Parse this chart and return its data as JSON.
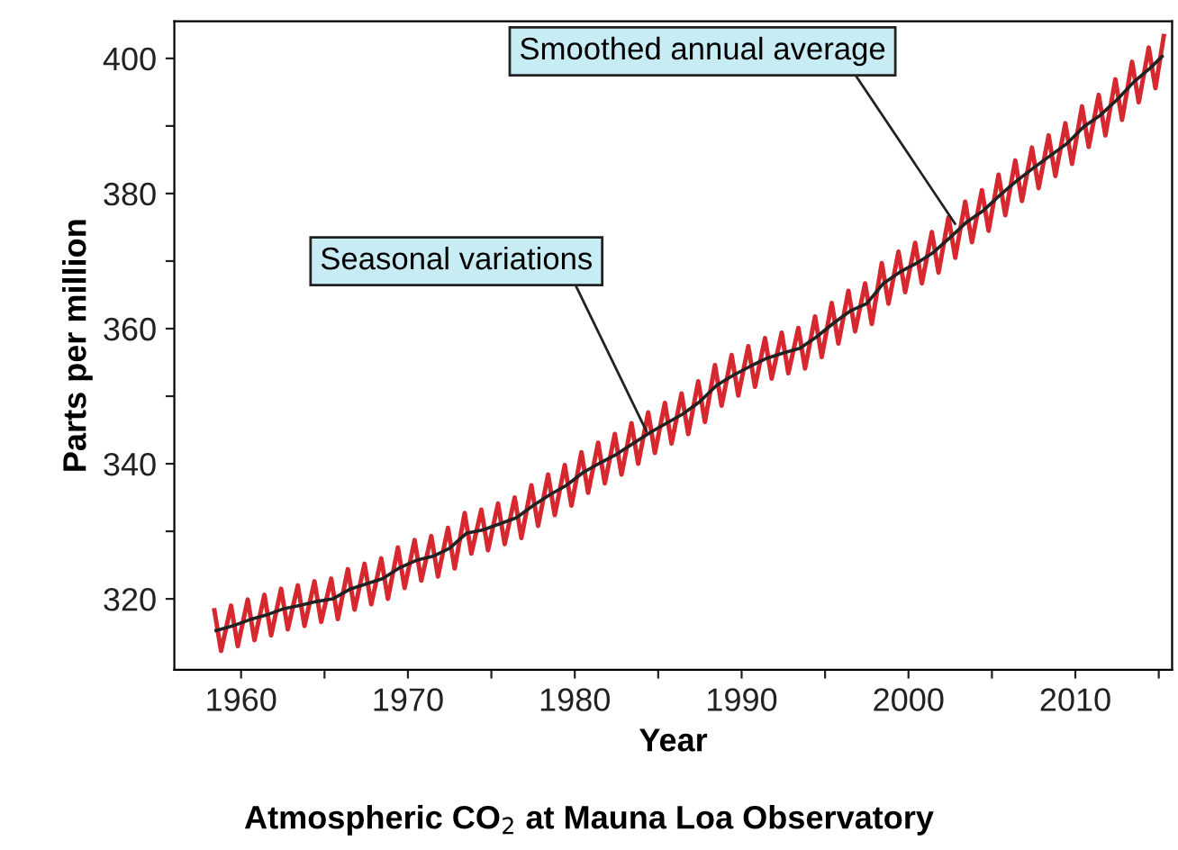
{
  "chart_data": {
    "type": "line",
    "title": "Atmospheric CO$_{2}$ at Mauna Loa Observatory",
    "xlabel": "Year",
    "ylabel": "Parts per million",
    "xlim": [
      1956,
      2015.8
    ],
    "ylim": [
      309.5,
      405.5
    ],
    "xticks": [
      1960,
      {
        "value": 1965,
        "label": null
      },
      1970,
      {
        "value": 1975,
        "label": null
      },
      1980,
      {
        "value": 1985,
        "label": null
      },
      1990,
      {
        "value": 1995,
        "label": null
      },
      2000,
      {
        "value": 2005,
        "label": null
      },
      2010,
      {
        "value": 2015,
        "label": null
      }
    ],
    "yticks": [
      320,
      {
        "value": 330,
        "label": null
      },
      340,
      {
        "value": 350,
        "label": null
      },
      360,
      {
        "value": 370,
        "label": null
      },
      380,
      {
        "value": 390,
        "label": null
      },
      400
    ],
    "grid": false,
    "legend": false,
    "line_style": "solid",
    "marker": "none",
    "annotations": [
      {
        "text": "Seasonal variations",
        "x": 1984.3,
        "y": 344.8
      },
      {
        "text": "Smoothed annual average",
        "x": 2002.8,
        "y": 375.5
      }
    ],
    "series": [
      {
        "color": "#d7282f",
        "x": [
          1958.4,
          1958.8,
          1959.4,
          1959.8,
          1960.4,
          1960.8,
          1961.4,
          1961.8,
          1962.4,
          1962.8,
          1963.4,
          1963.8,
          1964.4,
          1964.8,
          1965.4,
          1965.8,
          1966.4,
          1966.8,
          1967.4,
          1967.8,
          1968.4,
          1968.8,
          1969.4,
          1969.8,
          1970.4,
          1970.8,
          1971.4,
          1971.8,
          1972.4,
          1972.8,
          1973.4,
          1973.8,
          1974.4,
          1974.8,
          1975.4,
          1975.8,
          1976.4,
          1976.8,
          1977.4,
          1977.8,
          1978.4,
          1978.8,
          1979.4,
          1979.8,
          1980.4,
          1980.8,
          1981.4,
          1981.8,
          1982.4,
          1982.8,
          1983.4,
          1983.8,
          1984.4,
          1984.8,
          1985.4,
          1985.8,
          1986.4,
          1986.8,
          1987.4,
          1987.8,
          1988.4,
          1988.8,
          1989.4,
          1989.8,
          1990.4,
          1990.8,
          1991.4,
          1991.8,
          1992.4,
          1992.8,
          1993.4,
          1993.8,
          1994.4,
          1994.8,
          1995.4,
          1995.8,
          1996.4,
          1996.8,
          1997.4,
          1997.8,
          1998.4,
          1998.8,
          1999.4,
          1999.8,
          2000.4,
          2000.8,
          2001.4,
          2001.8,
          2002.4,
          2002.8,
          2003.4,
          2003.8,
          2004.4,
          2004.8,
          2005.4,
          2005.8,
          2006.4,
          2006.8,
          2007.4,
          2007.8,
          2008.4,
          2008.8,
          2009.4,
          2009.8,
          2010.4,
          2010.8,
          2011.4,
          2011.8,
          2012.4,
          2012.8,
          2013.4,
          2013.8,
          2014.4,
          2014.8,
          2015.3
        ],
        "values": [
          318.3,
          312.3,
          319.0,
          313.0,
          319.9,
          313.9,
          320.6,
          314.6,
          321.5,
          315.5,
          322.0,
          316.0,
          322.6,
          316.6,
          323.0,
          317.0,
          324.4,
          318.4,
          325.2,
          319.2,
          326.0,
          320.0,
          327.6,
          321.6,
          328.7,
          322.7,
          329.3,
          323.3,
          330.5,
          324.5,
          332.7,
          326.7,
          333.2,
          327.2,
          334.1,
          328.1,
          335.0,
          329.0,
          336.8,
          330.8,
          338.4,
          332.4,
          339.8,
          333.8,
          341.7,
          335.7,
          343.1,
          337.1,
          344.4,
          338.4,
          346.0,
          340.0,
          347.6,
          341.6,
          349.0,
          343.0,
          350.4,
          344.4,
          352.2,
          346.2,
          354.6,
          348.6,
          356.1,
          350.1,
          357.4,
          351.4,
          358.6,
          352.6,
          359.4,
          353.4,
          360.1,
          354.1,
          361.8,
          355.8,
          363.8,
          357.8,
          365.6,
          359.6,
          366.7,
          360.7,
          369.7,
          363.7,
          371.4,
          365.4,
          372.7,
          366.7,
          374.3,
          368.3,
          376.5,
          370.5,
          378.8,
          372.8,
          380.5,
          374.5,
          382.8,
          376.8,
          384.9,
          378.9,
          386.8,
          380.8,
          388.6,
          382.6,
          390.4,
          384.4,
          392.9,
          386.9,
          394.6,
          388.6,
          396.9,
          390.9,
          399.5,
          393.5,
          401.6,
          395.6,
          403.3
        ]
      },
      {
        "color": "#222222",
        "x": [
          1958.5,
          1959.5,
          1960.5,
          1961.5,
          1962.5,
          1963.5,
          1964.5,
          1965.5,
          1966.5,
          1967.5,
          1968.5,
          1969.5,
          1970.5,
          1971.5,
          1972.5,
          1973.5,
          1974.5,
          1975.5,
          1976.5,
          1977.5,
          1978.5,
          1979.5,
          1980.5,
          1981.5,
          1982.5,
          1983.5,
          1984.5,
          1985.5,
          1986.5,
          1987.5,
          1988.5,
          1989.5,
          1990.5,
          1991.5,
          1992.5,
          1993.5,
          1994.5,
          1995.5,
          1996.5,
          1997.5,
          1998.5,
          1999.5,
          2000.5,
          2001.5,
          2002.5,
          2003.5,
          2004.5,
          2005.5,
          2006.5,
          2007.5,
          2008.5,
          2009.5,
          2010.5,
          2011.5,
          2012.5,
          2013.5,
          2014.5,
          2015.2
        ],
        "values": [
          315.3,
          316.0,
          316.9,
          317.6,
          318.5,
          319.0,
          319.6,
          320.0,
          321.4,
          322.2,
          323.0,
          324.6,
          325.7,
          326.3,
          327.5,
          329.7,
          330.2,
          331.1,
          332.0,
          333.8,
          335.4,
          336.8,
          338.7,
          340.1,
          341.4,
          343.0,
          344.6,
          346.0,
          347.4,
          349.2,
          351.6,
          353.1,
          354.4,
          355.6,
          356.4,
          357.1,
          358.8,
          360.8,
          362.6,
          363.7,
          366.7,
          368.4,
          369.7,
          371.3,
          373.5,
          375.8,
          377.5,
          379.8,
          381.9,
          383.8,
          385.6,
          387.4,
          389.9,
          391.6,
          393.9,
          396.5,
          398.6,
          400.3
        ]
      }
    ]
  }
}
